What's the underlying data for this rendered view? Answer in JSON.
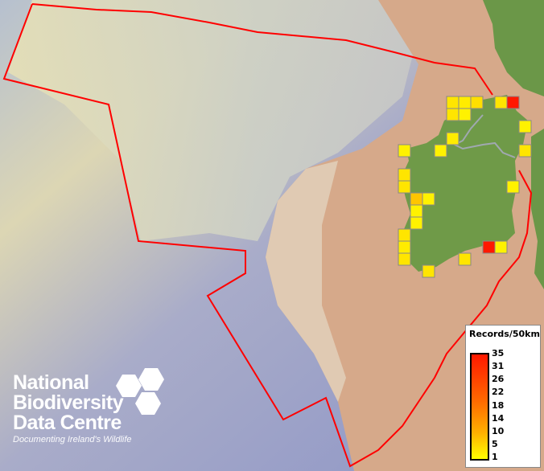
{
  "map": {
    "title": "",
    "colors": {
      "land": "#6e9a48",
      "sea_shallow": "#e8dcb0",
      "sea_deep": "#8f97c9",
      "shelf": "#d8a88a",
      "boundary": "#ff0000",
      "grid_border": "#888888"
    },
    "cell_size_km": 50,
    "cells": [
      {
        "col": 4,
        "row": 0,
        "value": 3
      },
      {
        "col": 5,
        "row": 0,
        "value": 2
      },
      {
        "col": 6,
        "row": 0,
        "value": 4
      },
      {
        "col": 8,
        "row": 0,
        "value": 3
      },
      {
        "col": 9,
        "row": 0,
        "value": 35
      },
      {
        "col": 4,
        "row": 1,
        "value": 3
      },
      {
        "col": 5,
        "row": 1,
        "value": 1
      },
      {
        "col": 10,
        "row": 2,
        "value": 1
      },
      {
        "col": 4,
        "row": 3,
        "value": 2
      },
      {
        "col": 0,
        "row": 4,
        "value": 1
      },
      {
        "col": 3,
        "row": 4,
        "value": 1
      },
      {
        "col": 10,
        "row": 4,
        "value": 3
      },
      {
        "col": 0,
        "row": 6,
        "value": 3
      },
      {
        "col": 0,
        "row": 7,
        "value": 3
      },
      {
        "col": 9,
        "row": 7,
        "value": 1
      },
      {
        "col": 1,
        "row": 8,
        "value": 8
      },
      {
        "col": 2,
        "row": 8,
        "value": 1
      },
      {
        "col": 1,
        "row": 9,
        "value": 1
      },
      {
        "col": 1,
        "row": 10,
        "value": 1
      },
      {
        "col": 0,
        "row": 11,
        "value": 3
      },
      {
        "col": 0,
        "row": 12,
        "value": 2
      },
      {
        "col": 7,
        "row": 12,
        "value": 35
      },
      {
        "col": 8,
        "row": 12,
        "value": 1
      },
      {
        "col": 0,
        "row": 13,
        "value": 3
      },
      {
        "col": 5,
        "row": 13,
        "value": 3
      },
      {
        "col": 2,
        "row": 14,
        "value": 3
      }
    ]
  },
  "legend": {
    "title": "Records/50km",
    "ticks": [
      "35",
      "31",
      "26",
      "22",
      "18",
      "14",
      "10",
      "5",
      "1"
    ],
    "min": 1,
    "max": 35,
    "color_low": "#ffff00",
    "color_high": "#ff1800"
  },
  "logo": {
    "line1": "National",
    "line2": "Biodiversity",
    "line3": "Data Centre",
    "tagline": "Documenting Ireland's Wildlife"
  }
}
